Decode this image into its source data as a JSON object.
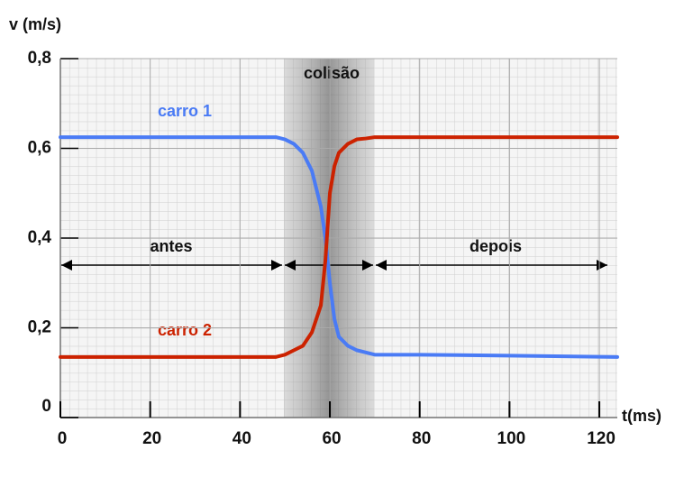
{
  "chart_data": {
    "type": "line",
    "y_label": "v (m/s)",
    "x_label": "t(ms)",
    "x": [
      0,
      10,
      20,
      30,
      40,
      48,
      50,
      52,
      54,
      56,
      58,
      59,
      60,
      61,
      62,
      64,
      66,
      68,
      70,
      72,
      80,
      100,
      124
    ],
    "series": [
      {
        "name": "carro 1",
        "color": "#4a7bf5",
        "values": [
          0.625,
          0.625,
          0.625,
          0.625,
          0.625,
          0.625,
          0.62,
          0.61,
          0.59,
          0.55,
          0.47,
          0.4,
          0.3,
          0.22,
          0.18,
          0.16,
          0.15,
          0.145,
          0.14,
          0.14,
          0.14,
          0.138,
          0.135
        ]
      },
      {
        "name": "carro 2",
        "color": "#cc2200",
        "values": [
          0.135,
          0.135,
          0.135,
          0.135,
          0.135,
          0.135,
          0.14,
          0.15,
          0.16,
          0.19,
          0.25,
          0.35,
          0.5,
          0.56,
          0.59,
          0.61,
          0.62,
          0.622,
          0.625,
          0.625,
          0.625,
          0.625,
          0.625
        ]
      }
    ],
    "xlim": [
      0,
      124
    ],
    "ylim": [
      0,
      0.8
    ],
    "xticks": [
      0,
      20,
      40,
      60,
      80,
      100,
      120
    ],
    "yticks": [
      0,
      {
        "value": 0.2,
        "label": "0,2"
      },
      {
        "value": 0.4,
        "label": "0,4"
      },
      {
        "value": 0.6,
        "label": "0,6"
      },
      {
        "value": 0.8,
        "label": "0,8"
      }
    ],
    "annotations": {
      "collision": "colisão",
      "before": "antes",
      "after": "depois"
    },
    "grid": true
  }
}
